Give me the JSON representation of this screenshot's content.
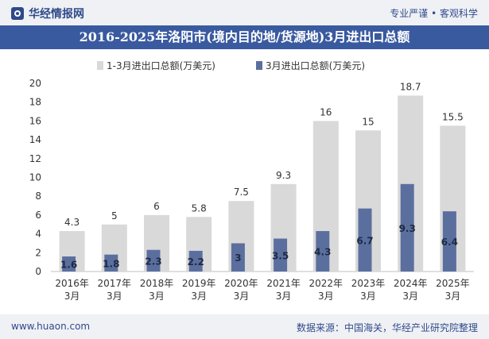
{
  "header": {
    "brand": "华经情报网",
    "slogan": "专业严谨 • 客观科学",
    "title": "2016-2025年洛阳市(境内目的地/货源地)3月进出口总额"
  },
  "footer": {
    "site": "www.huaon.com",
    "source": "数据来源：中国海关，华经产业研究院整理"
  },
  "colors": {
    "header_bg": "#f0f1f5",
    "title_bg": "#3a5aa0",
    "brand": "#2f4a8a",
    "series_total": "#d9d9d9",
    "series_march": "#5b6f9f"
  },
  "icons": [
    "brand-logo-icon"
  ],
  "chart_data": {
    "type": "bar",
    "title": "2016-2025年洛阳市(境内目的地/货源地)3月进出口总额",
    "categories": [
      "2016年3月",
      "2017年3月",
      "2018年3月",
      "2019年3月",
      "2020年3月",
      "2021年3月",
      "2022年3月",
      "2023年3月",
      "2024年3月",
      "2025年3月"
    ],
    "series": [
      {
        "name": "1-3月进出口总额(万美元)",
        "values": [
          4.3,
          5,
          6,
          5.8,
          7.5,
          9.3,
          16,
          15,
          18.7,
          15.5
        ],
        "labels": [
          "4.3",
          "5",
          "6",
          "5.8",
          "7.5",
          "9.3",
          "16",
          "15",
          "18.7",
          "15.5"
        ],
        "color": "#d9d9d9"
      },
      {
        "name": "3月进出口总额(万美元)",
        "values": [
          1.6,
          1.8,
          2.3,
          2.2,
          3,
          3.5,
          4.3,
          6.7,
          9.3,
          6.4
        ],
        "labels": [
          "1.6",
          "1.8",
          "2.3",
          "2.2",
          "3",
          "3.5",
          "4.3",
          "6.7",
          "9.3",
          "6.4"
        ],
        "color": "#5b6f9f"
      }
    ],
    "ylim": [
      0,
      20
    ],
    "yticks": [
      "0",
      "2",
      "4",
      "6",
      "8",
      "10",
      "12",
      "14",
      "16",
      "18",
      "20"
    ],
    "xlabel": "",
    "ylabel": "",
    "grid": false,
    "legend": "top-center"
  }
}
